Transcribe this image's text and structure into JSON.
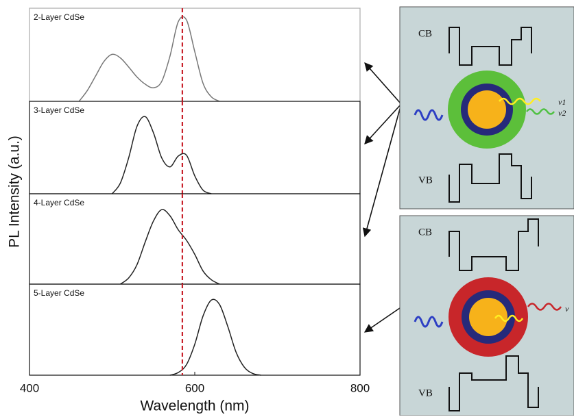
{
  "chart_data": [
    {
      "type": "line",
      "title": "2-Layer CdSe",
      "ylabel": "PL Intensity (a.u.)",
      "color": "#777777",
      "x": [
        460,
        470,
        480,
        490,
        500,
        510,
        520,
        530,
        540,
        550,
        560,
        570,
        580,
        590,
        600,
        610,
        620,
        630
      ],
      "values": [
        0.0,
        0.12,
        0.28,
        0.44,
        0.52,
        0.48,
        0.38,
        0.27,
        0.19,
        0.15,
        0.22,
        0.5,
        0.88,
        0.9,
        0.55,
        0.2,
        0.05,
        0.0
      ],
      "xlim": [
        400,
        800
      ],
      "ylim": [
        0,
        1
      ],
      "reference_line": 585
    },
    {
      "type": "line",
      "title": "3-Layer CdSe",
      "color": "#222222",
      "x": [
        500,
        510,
        520,
        530,
        540,
        550,
        560,
        570,
        580,
        590,
        600,
        610,
        620
      ],
      "values": [
        0.0,
        0.12,
        0.4,
        0.75,
        0.86,
        0.68,
        0.4,
        0.3,
        0.42,
        0.43,
        0.2,
        0.04,
        0.0
      ],
      "xlim": [
        400,
        800
      ],
      "ylim": [
        0,
        1
      ],
      "reference_line": 585
    },
    {
      "type": "line",
      "title": "4-Layer CdSe",
      "color": "#222222",
      "x": [
        510,
        520,
        530,
        540,
        550,
        560,
        570,
        580,
        590,
        600,
        610,
        620,
        630
      ],
      "values": [
        0.0,
        0.07,
        0.22,
        0.48,
        0.72,
        0.85,
        0.78,
        0.62,
        0.5,
        0.34,
        0.15,
        0.05,
        0.0
      ],
      "xlim": [
        400,
        800
      ],
      "ylim": [
        0,
        1
      ],
      "reference_line": 585
    },
    {
      "type": "line",
      "title": "5-Layer CdSe",
      "color": "#222222",
      "xlabel": "Wavelength (nm)",
      "x": [
        570,
        580,
        590,
        600,
        610,
        620,
        630,
        640,
        650,
        660,
        670,
        680
      ],
      "values": [
        0.0,
        0.03,
        0.12,
        0.35,
        0.67,
        0.85,
        0.8,
        0.55,
        0.26,
        0.09,
        0.02,
        0.0
      ],
      "xlim": [
        400,
        800
      ],
      "ylim": [
        0,
        1
      ],
      "xticks": [
        400,
        600,
        800
      ],
      "reference_line": 585
    }
  ],
  "diagram": {
    "top": {
      "cb": "CB",
      "vb": "VB",
      "emission_1": "ν1",
      "emission_2": "ν2"
    },
    "bottom": {
      "cb": "CB",
      "vb": "VB",
      "emission": "ν"
    }
  }
}
